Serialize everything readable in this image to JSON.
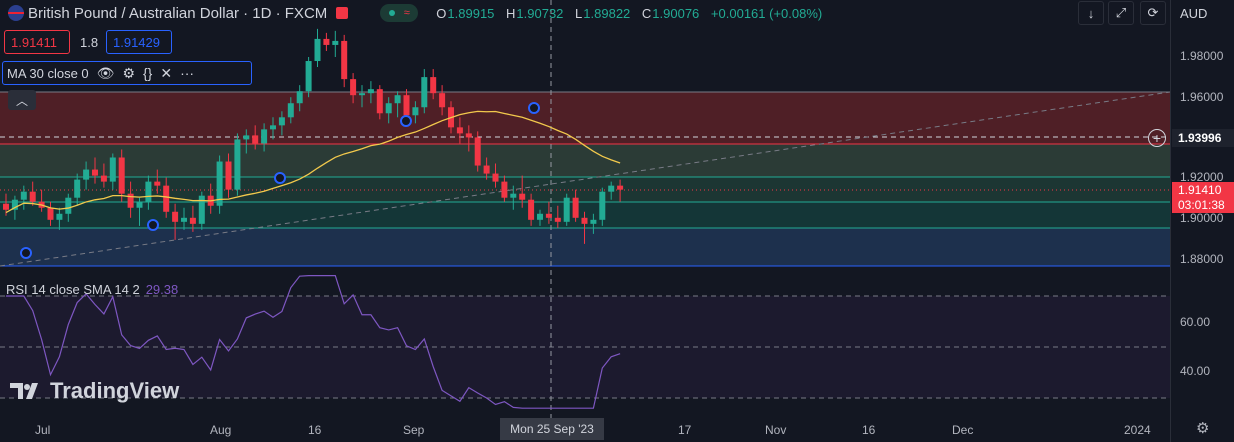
{
  "header": {
    "symbol": "British Pound / Australian Dollar · 1D · FXCM",
    "ohlc": [
      {
        "k": "O",
        "v": "1.89915"
      },
      {
        "k": "H",
        "v": "1.90732"
      },
      {
        "k": "L",
        "v": "1.89822"
      },
      {
        "k": "C",
        "v": "1.90076"
      }
    ],
    "change": "+0.00161 (+0.08%)",
    "currency": "AUD"
  },
  "trade": {
    "sell_price": "1.91411",
    "spread": "1.8",
    "buy_price": "1.91429"
  },
  "ma_legend": {
    "label": "MA 30 close 0"
  },
  "rsi_legend": {
    "label": "RSI 14 close SMA 14 2",
    "value": "29.38"
  },
  "logo": {
    "text": "TradingView"
  },
  "price_axis": {
    "labels": [
      "1.98000",
      "1.96000",
      "1.92000",
      "1.90000",
      "1.88000"
    ],
    "crosshair_price": "1.93996",
    "last_price": "1.91410",
    "countdown": "03:01:38"
  },
  "rsi_axis": {
    "labels": [
      "60.00",
      "40.00"
    ]
  },
  "time_axis": {
    "labels": [
      "Jul",
      "Aug",
      "16",
      "Sep",
      "17",
      "Nov",
      "16",
      "Dec",
      "2024"
    ],
    "crosshair_date": "Mon 25 Sep '23"
  },
  "colors": {
    "up": "#22ab94",
    "down": "#f23645",
    "ma": "#f2c94c",
    "rsi": "#7e57c2",
    "background": "#131722",
    "accent": "#2962ff"
  },
  "icons": {
    "flag": "gbp-aud-flag-icon",
    "eye": "eye-icon",
    "settings": "gear-icon",
    "source": "braces-icon",
    "remove": "close-icon",
    "more": "more-icon",
    "collapse": "chevron-up-icon",
    "plus": "plus-circle-icon"
  },
  "chart_data": {
    "type": "candlestick",
    "xlabel": "",
    "ylabel": "",
    "ylim": [
      1.873,
      1.995
    ],
    "candles": [
      [
        1.907,
        1.912,
        1.901,
        1.904
      ],
      [
        1.904,
        1.911,
        1.899,
        1.909
      ],
      [
        1.909,
        1.916,
        1.904,
        1.913
      ],
      [
        1.913,
        1.918,
        1.906,
        1.908
      ],
      [
        1.908,
        1.914,
        1.903,
        1.905
      ],
      [
        1.905,
        1.908,
        1.896,
        1.899
      ],
      [
        1.899,
        1.905,
        1.894,
        1.902
      ],
      [
        1.902,
        1.912,
        1.898,
        1.91
      ],
      [
        1.91,
        1.922,
        1.906,
        1.919
      ],
      [
        1.919,
        1.928,
        1.914,
        1.924
      ],
      [
        1.924,
        1.93,
        1.917,
        1.921
      ],
      [
        1.921,
        1.927,
        1.915,
        1.918
      ],
      [
        1.918,
        1.932,
        1.914,
        1.93
      ],
      [
        1.93,
        1.934,
        1.908,
        1.912
      ],
      [
        1.912,
        1.918,
        1.9,
        1.905
      ],
      [
        1.905,
        1.91,
        1.896,
        1.908
      ],
      [
        1.908,
        1.921,
        1.904,
        1.918
      ],
      [
        1.918,
        1.924,
        1.912,
        1.916
      ],
      [
        1.916,
        1.92,
        1.9,
        1.903
      ],
      [
        1.903,
        1.907,
        1.889,
        1.898
      ],
      [
        1.898,
        1.905,
        1.894,
        1.9
      ],
      [
        1.9,
        1.906,
        1.893,
        1.897
      ],
      [
        1.897,
        1.913,
        1.894,
        1.911
      ],
      [
        1.911,
        1.917,
        1.902,
        1.906
      ],
      [
        1.906,
        1.931,
        1.902,
        1.928
      ],
      [
        1.928,
        1.932,
        1.91,
        1.914
      ],
      [
        1.914,
        1.942,
        1.911,
        1.939
      ],
      [
        1.939,
        1.944,
        1.932,
        1.941
      ],
      [
        1.941,
        1.946,
        1.934,
        1.937
      ],
      [
        1.937,
        1.947,
        1.933,
        1.944
      ],
      [
        1.944,
        1.95,
        1.939,
        1.946
      ],
      [
        1.946,
        1.953,
        1.941,
        1.95
      ],
      [
        1.95,
        1.96,
        1.947,
        1.957
      ],
      [
        1.957,
        1.966,
        1.953,
        1.963
      ],
      [
        1.963,
        1.98,
        1.96,
        1.978
      ],
      [
        1.978,
        1.994,
        1.975,
        1.989
      ],
      [
        1.989,
        1.992,
        1.983,
        1.986
      ],
      [
        1.986,
        1.993,
        1.98,
        1.988
      ],
      [
        1.988,
        1.991,
        1.965,
        1.969
      ],
      [
        1.969,
        1.972,
        1.957,
        1.961
      ],
      [
        1.961,
        1.966,
        1.955,
        1.962
      ],
      [
        1.962,
        1.968,
        1.957,
        1.964
      ],
      [
        1.964,
        1.966,
        1.949,
        1.952
      ],
      [
        1.952,
        1.96,
        1.947,
        1.957
      ],
      [
        1.957,
        1.963,
        1.95,
        1.961
      ],
      [
        1.961,
        1.964,
        1.949,
        1.951
      ],
      [
        1.951,
        1.958,
        1.947,
        1.955
      ],
      [
        1.955,
        1.974,
        1.952,
        1.97
      ],
      [
        1.97,
        1.974,
        1.959,
        1.962
      ],
      [
        1.962,
        1.966,
        1.951,
        1.955
      ],
      [
        1.955,
        1.958,
        1.942,
        1.945
      ],
      [
        1.945,
        1.95,
        1.937,
        1.942
      ],
      [
        1.942,
        1.946,
        1.933,
        1.94
      ],
      [
        1.94,
        1.943,
        1.923,
        1.926
      ],
      [
        1.926,
        1.93,
        1.919,
        1.922
      ],
      [
        1.922,
        1.927,
        1.915,
        1.918
      ],
      [
        1.918,
        1.921,
        1.908,
        1.91
      ],
      [
        1.91,
        1.916,
        1.904,
        1.912
      ],
      [
        1.912,
        1.921,
        1.905,
        1.909
      ],
      [
        1.909,
        1.912,
        1.896,
        1.899
      ],
      [
        1.899,
        1.904,
        1.896,
        1.902
      ],
      [
        1.902,
        1.908,
        1.897,
        1.9
      ],
      [
        1.9,
        1.906,
        1.895,
        1.898
      ],
      [
        1.898,
        1.912,
        1.896,
        1.91
      ],
      [
        1.91,
        1.914,
        1.898,
        1.9
      ],
      [
        1.9,
        1.903,
        1.887,
        1.897
      ],
      [
        1.897,
        1.902,
        1.892,
        1.899
      ],
      [
        1.899,
        1.915,
        1.896,
        1.913
      ],
      [
        1.913,
        1.918,
        1.909,
        1.916
      ],
      [
        1.916,
        1.919,
        1.908,
        1.914
      ]
    ],
    "ma30_x_end": 69,
    "rsi_range": [
      26,
      78
    ]
  }
}
